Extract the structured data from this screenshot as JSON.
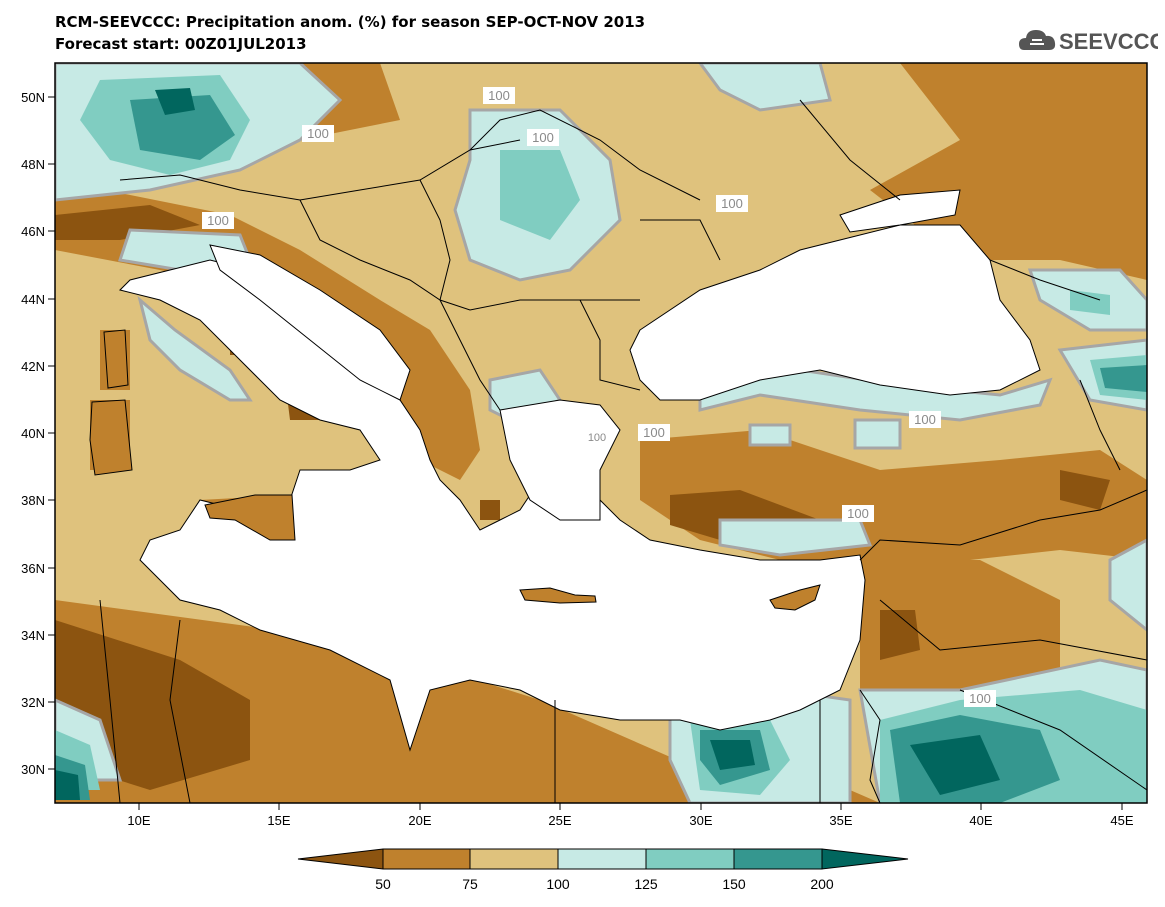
{
  "header": {
    "title": "RCM-SEEVCCC: Precipitation anom. (%) for season SEP-OCT-NOV 2013",
    "subtitle": "Forecast start: 00Z01JUL2013",
    "logo_text": "SEEVCCC"
  },
  "map": {
    "lat_labels": [
      "50N",
      "48N",
      "46N",
      "44N",
      "42N",
      "40N",
      "38N",
      "36N",
      "34N",
      "32N",
      "30N"
    ],
    "lon_labels": [
      "10E",
      "15E",
      "20E",
      "25E",
      "30E",
      "35E",
      "40E",
      "45E"
    ],
    "contour_labels": [
      "100",
      "100",
      "100",
      "100",
      "100",
      "100",
      "100",
      "100",
      "100",
      "100"
    ],
    "colors": {
      "lt50": "#8c5410",
      "c50_75": "#bf812d",
      "c75_100": "#dfc27d",
      "c100_125": "#c7eae5",
      "c125_150": "#80cdc1",
      "c150_200": "#35978f",
      "gt200": "#01665e",
      "sea": "#ffffff",
      "contour_100": "#a6a6a6"
    }
  },
  "colorbar": {
    "labels": [
      "50",
      "75",
      "100",
      "125",
      "150",
      "200"
    ],
    "colors": [
      "#8c5410",
      "#bf812d",
      "#dfc27d",
      "#c7eae5",
      "#80cdc1",
      "#35978f",
      "#01665e"
    ]
  }
}
